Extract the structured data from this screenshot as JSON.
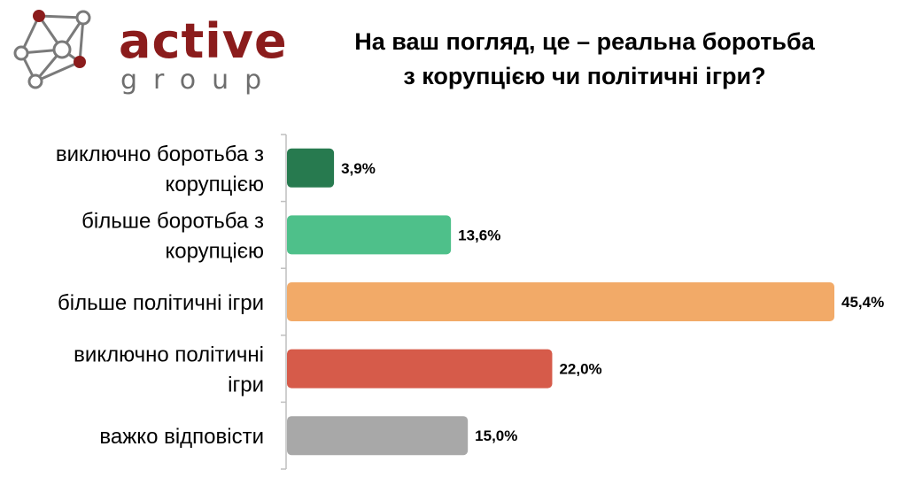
{
  "logo": {
    "name": "active",
    "sub": "group"
  },
  "chart_data": {
    "type": "bar",
    "orientation": "horizontal",
    "title": [
      "На ваш погляд, це – реальна боротьба",
      "з корупцією чи політичні ігри?"
    ],
    "categories": [
      [
        "виключно боротьба з",
        "корупцією"
      ],
      [
        "більше боротьба з",
        "корупцією"
      ],
      [
        "більше політичні ігри"
      ],
      [
        "виключно політичні",
        "ігри"
      ],
      [
        "важко відповісти"
      ]
    ],
    "values": [
      3.9,
      13.6,
      45.4,
      22.0,
      15.0
    ],
    "value_labels": [
      "3,9%",
      "13,6%",
      "45,4%",
      "22,0%",
      "15,0%"
    ],
    "colors": [
      "#277a4f",
      "#4ec08a",
      "#f2aa68",
      "#d65b4a",
      "#a8a8a8"
    ],
    "xlim": [
      0,
      45.4
    ],
    "grid": false,
    "legend": false
  }
}
